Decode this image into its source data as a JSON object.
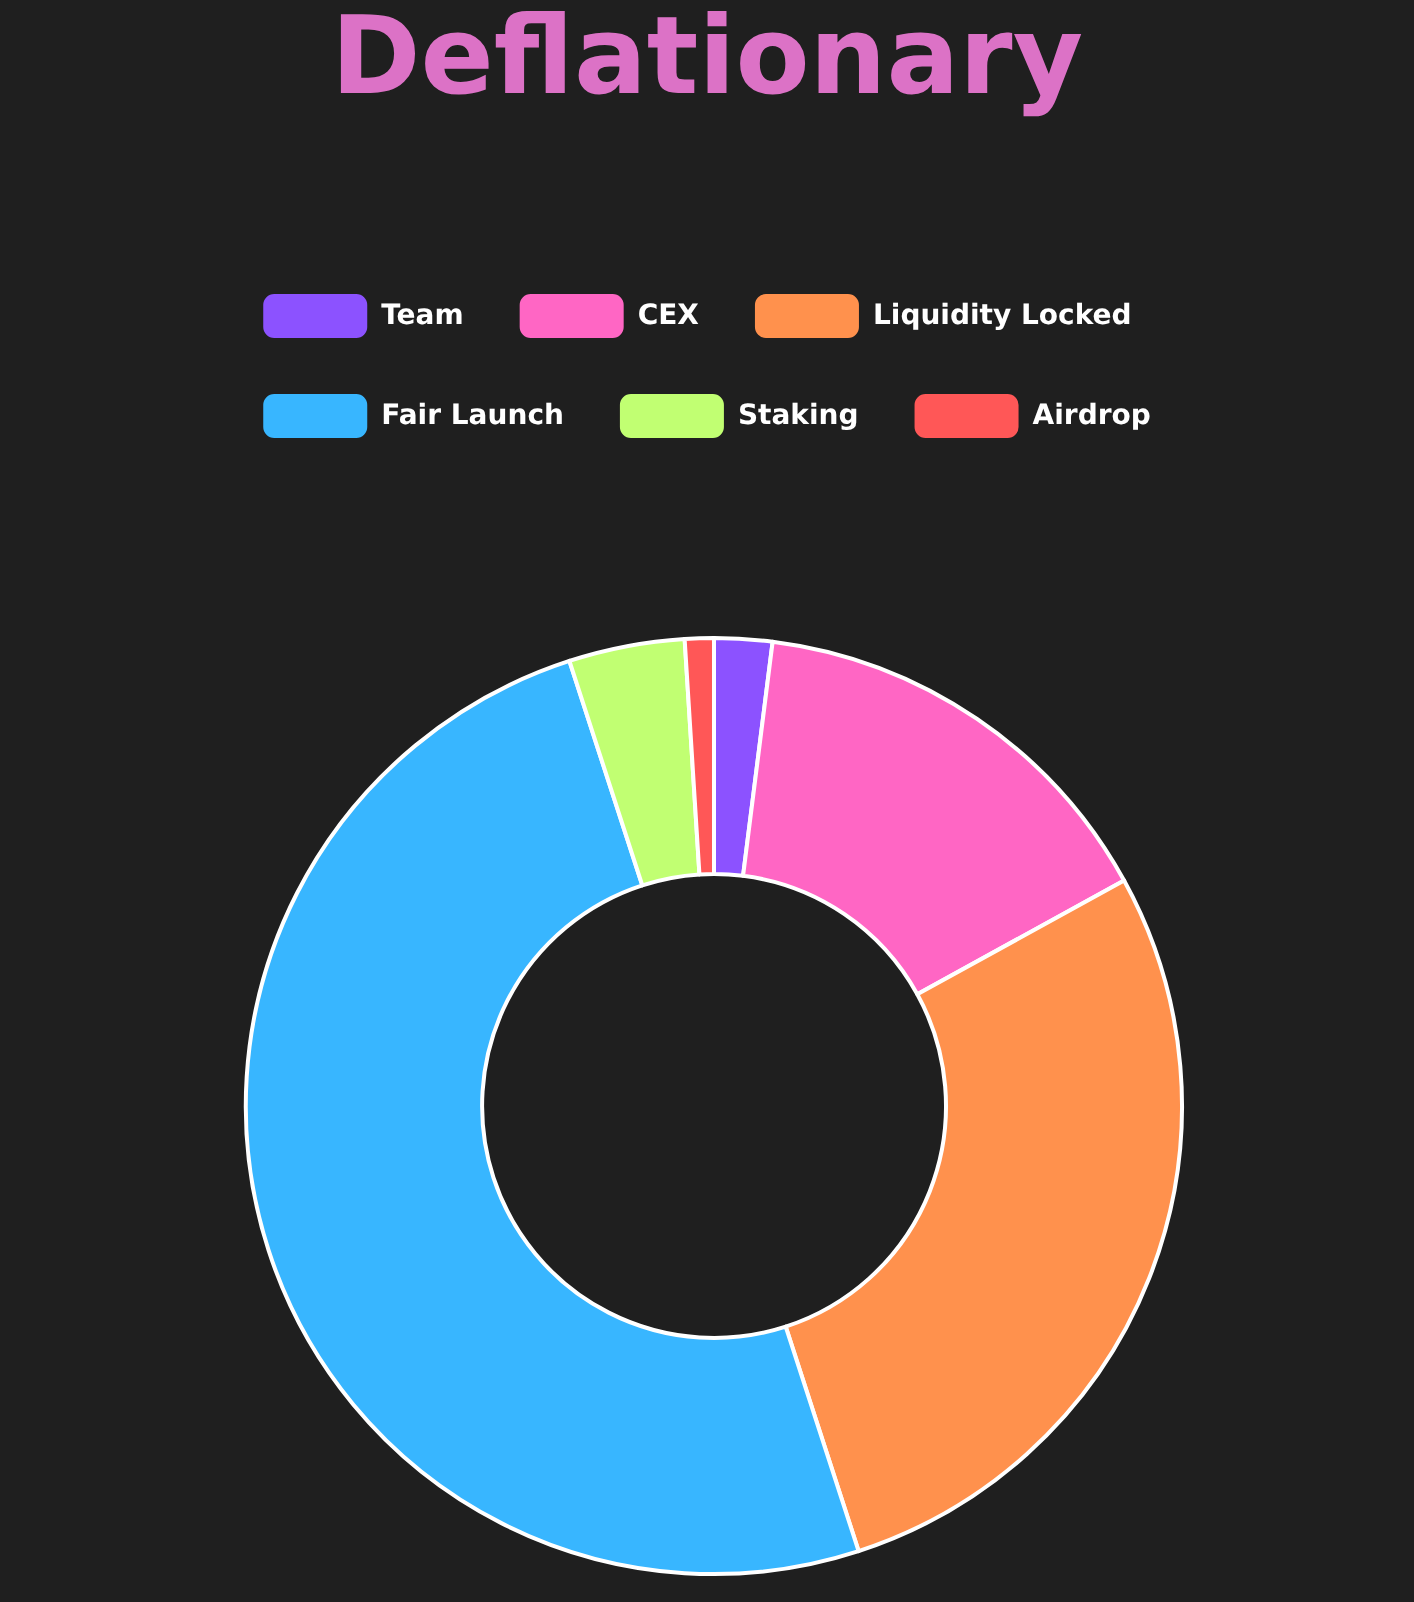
{
  "chart_data": {
    "type": "donut",
    "title": "Deflationary",
    "categories": [
      "Team",
      "CEX",
      "Liquidity Locked",
      "Fair Launch",
      "Staking",
      "Airdrop"
    ],
    "values": [
      2,
      15,
      28,
      50,
      4,
      1
    ],
    "colors": [
      "#8c52ff",
      "#ff66c4",
      "#ff914d",
      "#38b6ff",
      "#c1ff72",
      "#ff5757"
    ],
    "legend": "top"
  }
}
